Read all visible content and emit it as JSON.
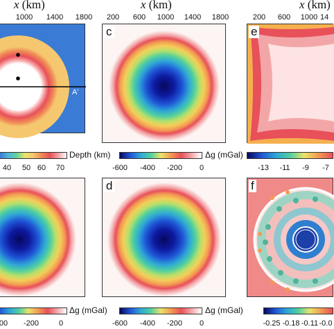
{
  "panels": {
    "a": {
      "axis_title": "x",
      "axis_unit": " (km)",
      "ticks": [
        "1000",
        "1400",
        "1800"
      ],
      "marker_label": "A'"
    },
    "c": {
      "label": "c",
      "axis_title": "x",
      "axis_unit": " (km)",
      "ticks": [
        "200",
        "600",
        "1000",
        "1400",
        "1800"
      ]
    },
    "e": {
      "label": "e",
      "axis_title": "x",
      "axis_unit": " (km)",
      "ticks": [
        "200",
        "600",
        "1000",
        "14"
      ]
    },
    "b": {},
    "d": {
      "label": "d"
    },
    "f": {
      "label": "f"
    }
  },
  "colorbars": {
    "depth": {
      "label": "Depth (km)",
      "ticks": [
        "40",
        "50",
        "60",
        "70"
      ]
    },
    "c": {
      "label": "Δg (mGal)",
      "ticks": [
        "-600",
        "-400",
        "-200",
        "0"
      ]
    },
    "e": {
      "ticks": [
        "-13",
        "-11",
        "-9",
        "-7"
      ]
    },
    "b": {
      "label": "Δg (mGal)",
      "ticks": [
        "00",
        "-200",
        "0"
      ]
    },
    "d": {
      "label": "Δg (mGal)",
      "ticks": [
        "-600",
        "-400",
        "-200",
        "0"
      ]
    },
    "f": {
      "ticks": [
        "-0.25",
        "-0.18",
        "-0.11",
        "-0.0"
      ]
    }
  },
  "colors": {
    "background_blue": "#3a7bd5",
    "crust_orange": "#f5c870",
    "ring_red": "#e8505a"
  }
}
